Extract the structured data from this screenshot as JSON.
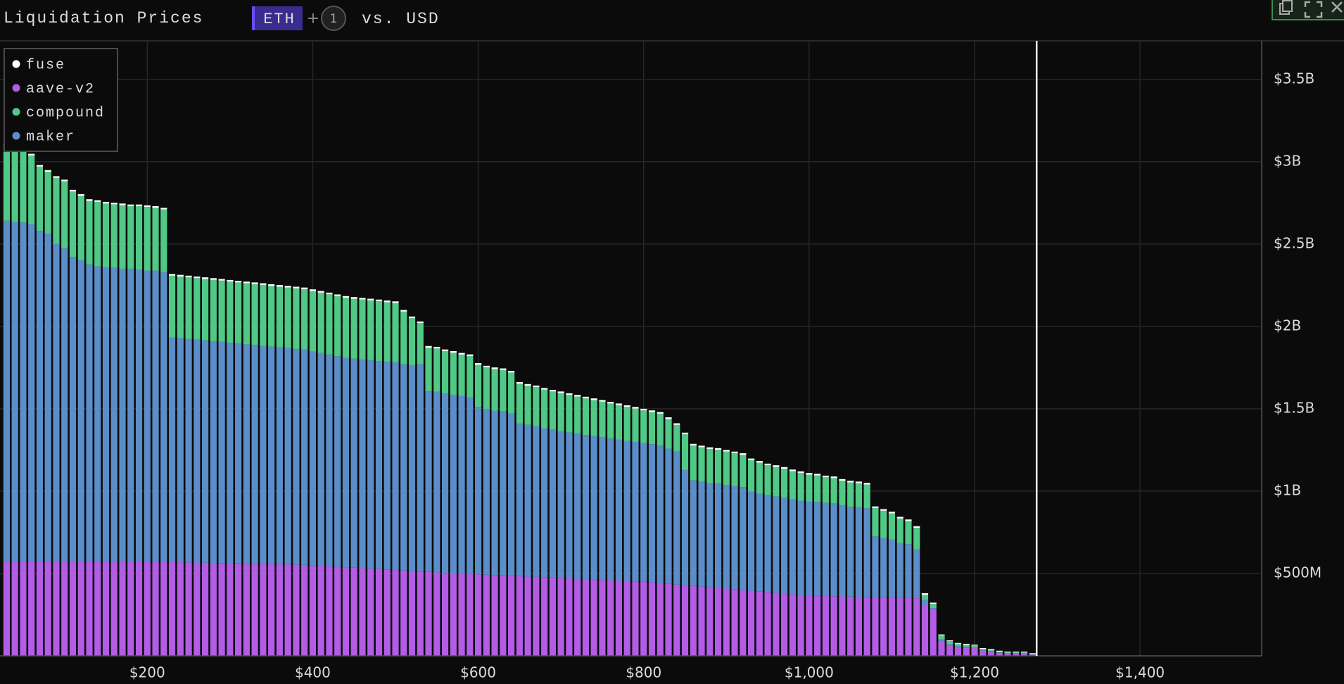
{
  "chart_data": {
    "type": "stacked-bar",
    "title": "Liquidation Prices",
    "asset": "ETH",
    "plus": "+",
    "extra_assets": 1,
    "quote": "vs. USD",
    "legend": "upper left",
    "grid": true,
    "xlim": [
      22,
      1547
    ],
    "ylim": [
      0,
      3734
    ],
    "xticks": [
      {
        "value": 200,
        "label": "$200"
      },
      {
        "value": 400,
        "label": "$400"
      },
      {
        "value": 600,
        "label": "$600"
      },
      {
        "value": 800,
        "label": "$800"
      },
      {
        "value": 1000,
        "label": "$1,000"
      },
      {
        "value": 1200,
        "label": "$1,200"
      },
      {
        "value": 1400,
        "label": "$1,400"
      }
    ],
    "yticks": [
      {
        "value": 500,
        "label": "$500M"
      },
      {
        "value": 1000,
        "label": "$1B"
      },
      {
        "value": 1500,
        "label": "$1.5B"
      },
      {
        "value": 2000,
        "label": "$2B"
      },
      {
        "value": 2500,
        "label": "$2.5B"
      },
      {
        "value": 3000,
        "label": "$3B"
      },
      {
        "value": 3500,
        "label": "$3.5B"
      }
    ],
    "current_price": 1275,
    "x": [
      30,
      40,
      50,
      60,
      70,
      80,
      90,
      100,
      110,
      120,
      130,
      140,
      150,
      160,
      170,
      180,
      190,
      200,
      210,
      220,
      230,
      240,
      250,
      260,
      270,
      280,
      290,
      300,
      310,
      320,
      330,
      340,
      350,
      360,
      370,
      380,
      390,
      400,
      410,
      420,
      430,
      440,
      450,
      460,
      470,
      480,
      490,
      500,
      510,
      520,
      530,
      540,
      550,
      560,
      570,
      580,
      590,
      600,
      610,
      620,
      630,
      640,
      650,
      660,
      670,
      680,
      690,
      700,
      710,
      720,
      730,
      740,
      750,
      760,
      770,
      780,
      790,
      800,
      810,
      820,
      830,
      840,
      850,
      860,
      870,
      880,
      890,
      900,
      910,
      920,
      930,
      940,
      950,
      960,
      970,
      980,
      990,
      1000,
      1010,
      1020,
      1030,
      1040,
      1050,
      1060,
      1070,
      1080,
      1090,
      1100,
      1110,
      1120,
      1130,
      1140,
      1150,
      1160,
      1170,
      1180,
      1190,
      1200,
      1210,
      1220,
      1230,
      1240,
      1250,
      1260,
      1270
    ],
    "series": [
      {
        "name": "aave-v2",
        "color": "#b35ce6",
        "values": [
          573,
          573,
          572,
          572,
          572,
          572,
          571,
          571,
          571,
          571,
          571,
          571,
          570,
          570,
          570,
          570,
          570,
          570,
          570,
          570,
          569,
          568,
          567,
          566,
          565,
          564,
          563,
          562,
          561,
          560,
          559,
          558,
          557,
          556,
          555,
          554,
          552,
          550,
          547,
          544,
          541,
          538,
          535,
          532,
          530,
          527,
          524,
          521,
          518,
          515,
          512,
          509,
          506,
          503,
          500,
          498,
          496,
          495,
          492,
          490,
          488,
          486,
          484,
          481,
          479,
          477,
          475,
          473,
          470,
          468,
          466,
          464,
          461,
          459,
          457,
          455,
          452,
          450,
          446,
          442,
          437,
          433,
          429,
          424,
          420,
          416,
          412,
          408,
          403,
          399,
          395,
          390,
          386,
          382,
          378,
          373,
          369,
          365,
          364,
          363,
          362,
          361,
          360,
          359,
          358,
          357,
          356,
          354,
          353,
          352,
          350,
          310,
          280,
          90,
          65,
          55,
          50,
          47,
          30,
          27,
          18,
          15,
          15,
          15,
          8
        ]
      },
      {
        "name": "maker",
        "color": "#5b8ec9",
        "values": [
          2068,
          2063,
          2059,
          2049,
          2007,
          1991,
          1930,
          1904,
          1851,
          1831,
          1805,
          1794,
          1790,
          1785,
          1780,
          1780,
          1774,
          1769,
          1769,
          1759,
          1364,
          1360,
          1357,
          1353,
          1350,
          1346,
          1343,
          1338,
          1335,
          1331,
          1328,
          1324,
          1320,
          1316,
          1313,
          1309,
          1307,
          1298,
          1292,
          1285,
          1278,
          1271,
          1269,
          1267,
          1265,
          1263,
          1261,
          1261,
          1252,
          1250,
          1258,
          1097,
          1098,
          1089,
          1085,
          1079,
          1074,
          1016,
          1005,
          999,
          997,
          986,
          928,
          921,
          916,
          905,
          898,
          892,
          886,
          881,
          875,
          870,
          866,
          860,
          855,
          850,
          847,
          842,
          839,
          835,
          821,
          807,
          701,
          641,
          636,
          633,
          634,
          630,
          627,
          625,
          601,
          595,
          587,
          585,
          582,
          576,
          573,
          571,
          571,
          565,
          565,
          552,
          545,
          543,
          538,
          368,
          360,
          353,
          331,
          326,
          297,
          30,
          10,
          10,
          5,
          4,
          4,
          4,
          3,
          3,
          2,
          2,
          2,
          2,
          1
        ]
      },
      {
        "name": "compound",
        "color": "#4fc985",
        "values": [
          459,
          444,
          433,
          417,
          391,
          376,
          401,
          406,
          397,
          391,
          386,
          391,
          386,
          386,
          386,
          380,
          386,
          386,
          381,
          381,
          375,
          375,
          374,
          374,
          373,
          373,
          372,
          372,
          371,
          371,
          370,
          370,
          369,
          369,
          368,
          368,
          367,
          367,
          366,
          366,
          365,
          365,
          364,
          364,
          363,
          363,
          362,
          360,
          320,
          285,
          250,
          265,
          262,
          258,
          255,
          252,
          250,
          256,
          254,
          252,
          250,
          248,
          240,
          238,
          236,
          234,
          232,
          230,
          228,
          225,
          222,
          219,
          216,
          213,
          210,
          206,
          202,
          198,
          195,
          193,
          180,
          162,
          215,
          212,
          210,
          207,
          205,
          202,
          200,
          196,
          192,
          188,
          184,
          180,
          176,
          172,
          168,
          164,
          160,
          156,
          152,
          150,
          148,
          146,
          144,
          172,
          165,
          158,
          150,
          140,
          130,
          30,
          25,
          25,
          19,
          14,
          14,
          12,
          9,
          7,
          6,
          4,
          4,
          4,
          2
        ]
      },
      {
        "name": "fuse",
        "color": "#ffffff",
        "values": [
          10,
          10,
          10,
          10,
          10,
          10,
          10,
          10,
          10,
          10,
          10,
          10,
          10,
          10,
          10,
          10,
          10,
          10,
          10,
          10,
          10,
          10,
          10,
          10,
          10,
          10,
          10,
          10,
          10,
          10,
          10,
          10,
          10,
          10,
          10,
          10,
          10,
          10,
          10,
          10,
          10,
          10,
          10,
          10,
          10,
          10,
          10,
          10,
          10,
          10,
          10,
          10,
          10,
          10,
          10,
          10,
          10,
          10,
          10,
          10,
          10,
          10,
          10,
          10,
          10,
          10,
          10,
          10,
          10,
          10,
          10,
          10,
          10,
          10,
          10,
          10,
          10,
          10,
          10,
          10,
          10,
          10,
          10,
          10,
          10,
          10,
          10,
          10,
          10,
          10,
          10,
          10,
          10,
          10,
          10,
          10,
          10,
          10,
          10,
          10,
          10,
          10,
          10,
          10,
          10,
          10,
          10,
          10,
          10,
          10,
          10,
          10,
          8,
          5,
          5,
          5,
          5,
          5,
          5,
          5,
          5,
          5,
          5,
          5,
          5
        ]
      }
    ]
  }
}
